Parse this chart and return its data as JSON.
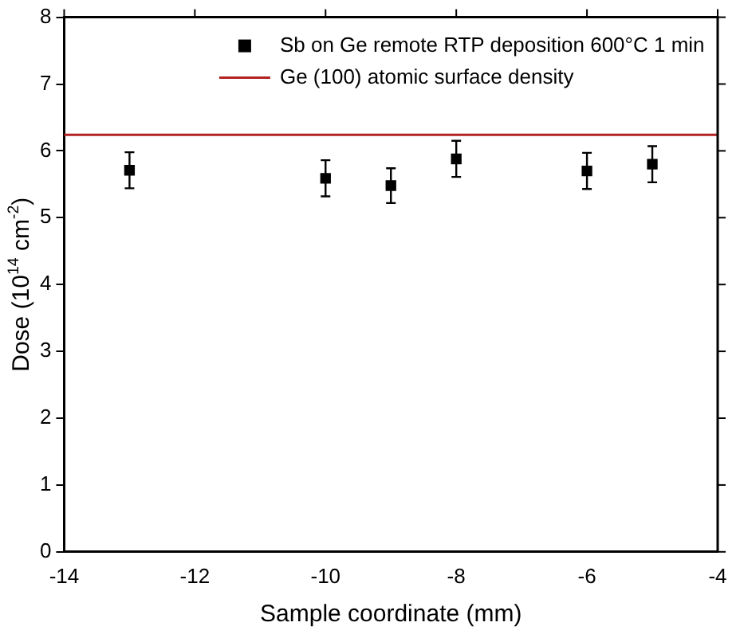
{
  "chart_data": {
    "type": "scatter",
    "xlabel": "Sample coordinate (mm)",
    "ylabel": "Dose (10$^{14}$ cm$^{-2}$)",
    "x": [
      -13,
      -10,
      -9,
      -8,
      -6,
      -5
    ],
    "series": [
      {
        "name": "Sb on Ge remote RTP deposition 600°C 1 min",
        "color": "#000000",
        "values": [
          5.71,
          5.59,
          5.48,
          5.88,
          5.7,
          5.8
        ],
        "errors": [
          0.27,
          0.27,
          0.26,
          0.27,
          0.27,
          0.27
        ]
      }
    ],
    "ref_lines": [
      {
        "axis": "y",
        "value": 6.24,
        "label": "Ge (100) atomic surface density",
        "color": "#b22222",
        "line_style": "solid"
      }
    ],
    "marker": "square",
    "xlim": [
      -14,
      -4
    ],
    "xticks": [
      -14,
      -12,
      -10,
      -8,
      -6,
      -4
    ],
    "ylim": [
      0,
      8
    ],
    "yticks": [
      0,
      1,
      2,
      3,
      4,
      5,
      6,
      7,
      8
    ],
    "grid": false,
    "legend": "top right"
  }
}
